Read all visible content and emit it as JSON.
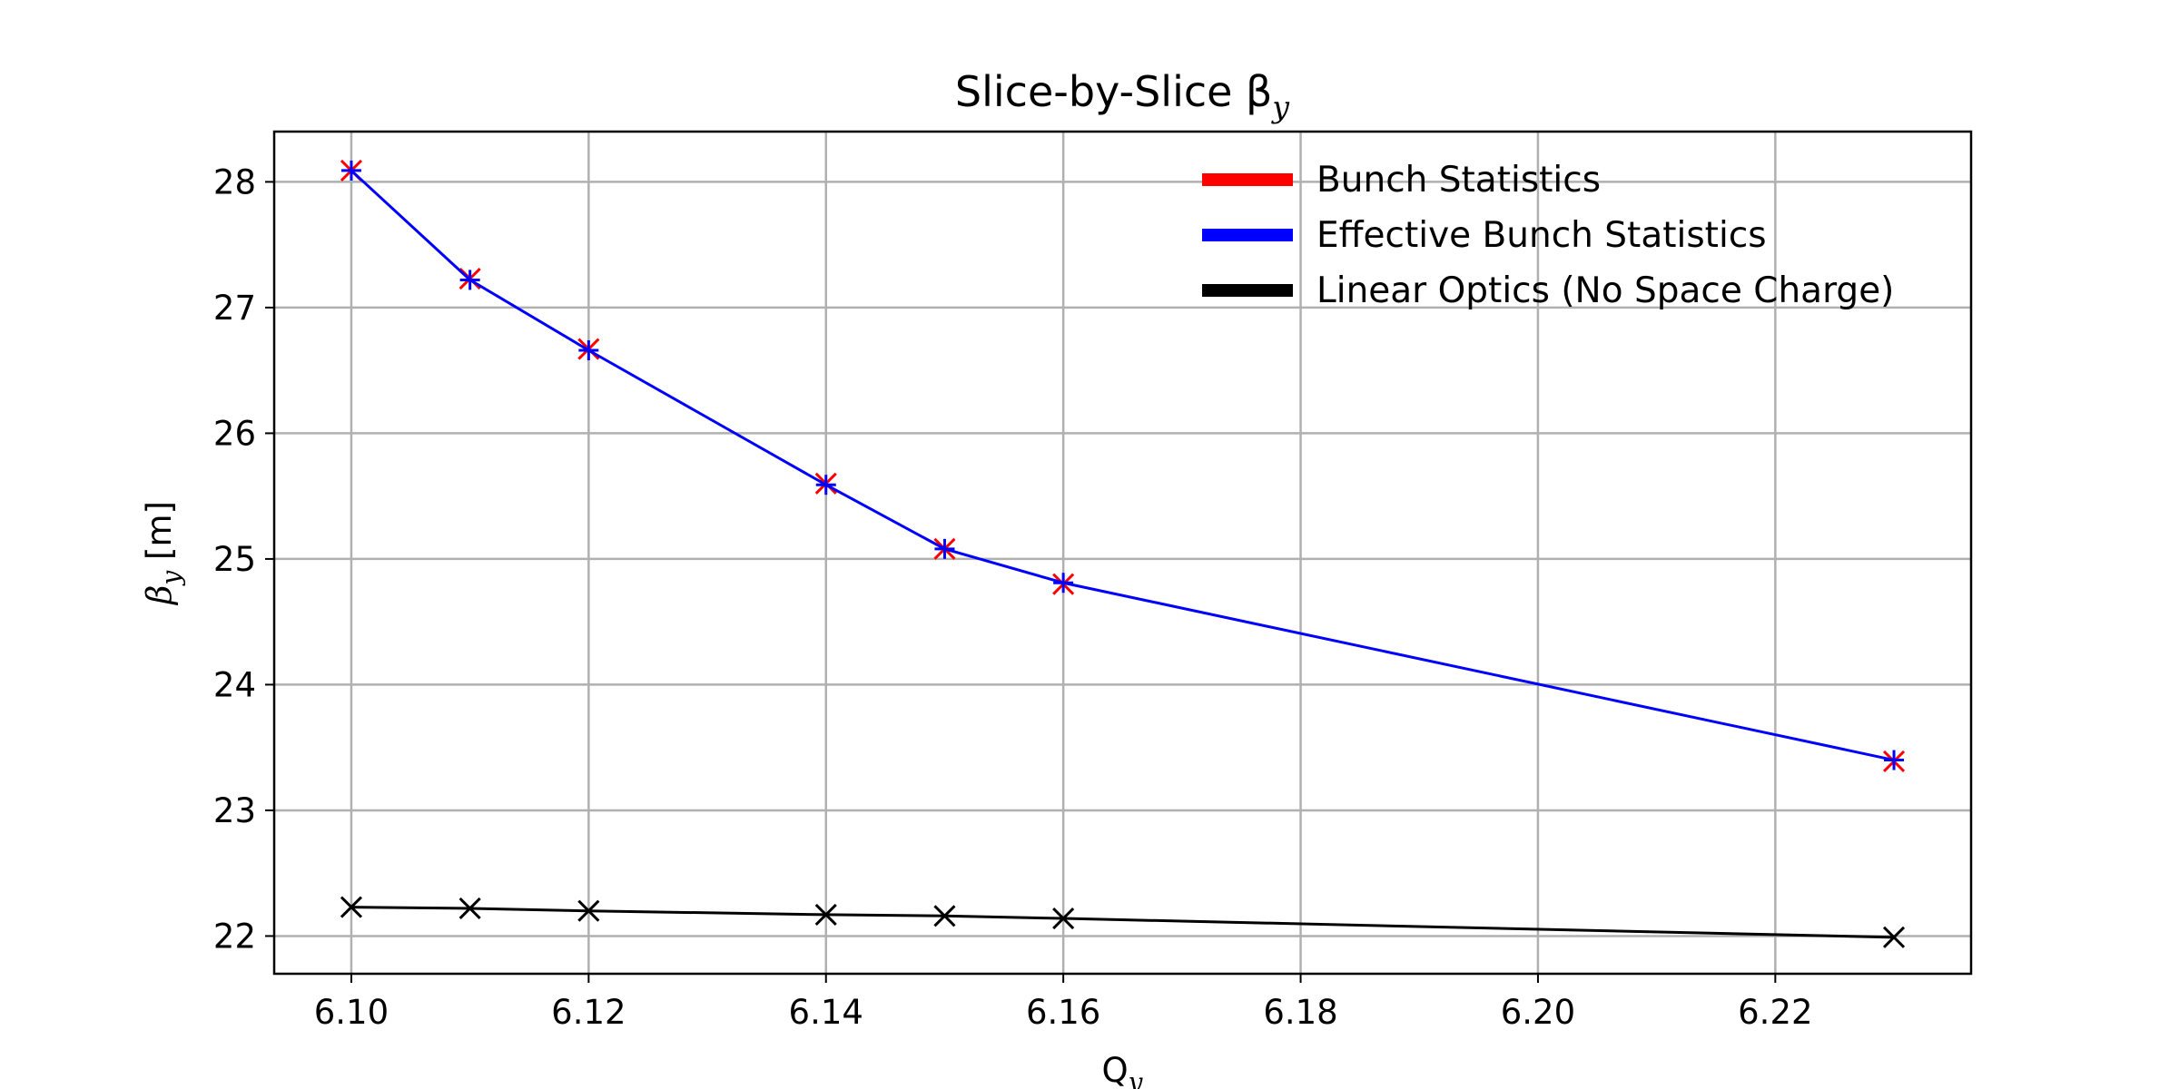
{
  "chart_data": {
    "type": "line",
    "title": "Slice-by-Slice β",
    "title_subscript": "y",
    "xlabel": "Q",
    "xlabel_subscript": "y",
    "ylabel": "β",
    "ylabel_subscript": "y",
    "ylabel_unit": " [m]",
    "xlim": [
      6.0935,
      6.2365
    ],
    "ylim": [
      21.7,
      28.4
    ],
    "x_ticks": [
      6.1,
      6.12,
      6.14,
      6.16,
      6.18,
      6.2,
      6.22
    ],
    "x_tick_labels": [
      "6.10",
      "6.12",
      "6.14",
      "6.16",
      "6.18",
      "6.20",
      "6.22"
    ],
    "y_ticks": [
      22,
      23,
      24,
      25,
      26,
      27,
      28
    ],
    "y_tick_labels": [
      "22",
      "23",
      "24",
      "25",
      "26",
      "27",
      "28"
    ],
    "grid": true,
    "legend_position": "top-right",
    "x": [
      6.1,
      6.11,
      6.12,
      6.14,
      6.15,
      6.16,
      6.23
    ],
    "series": [
      {
        "name": "Bunch Statistics",
        "color": "#ff0000",
        "marker": "x",
        "line": false,
        "values": [
          28.09,
          27.23,
          26.67,
          25.6,
          25.08,
          24.8,
          23.39
        ]
      },
      {
        "name": "Effective Bunch Statistics",
        "color": "#0000ff",
        "marker": "+",
        "line": true,
        "values": [
          28.09,
          27.22,
          26.66,
          25.59,
          25.08,
          24.81,
          23.4
        ]
      },
      {
        "name": "Linear Optics (No Space Charge)",
        "color": "#000000",
        "marker": "x",
        "line": true,
        "values": [
          22.23,
          22.22,
          22.2,
          22.17,
          22.16,
          22.14,
          21.99
        ]
      }
    ]
  }
}
